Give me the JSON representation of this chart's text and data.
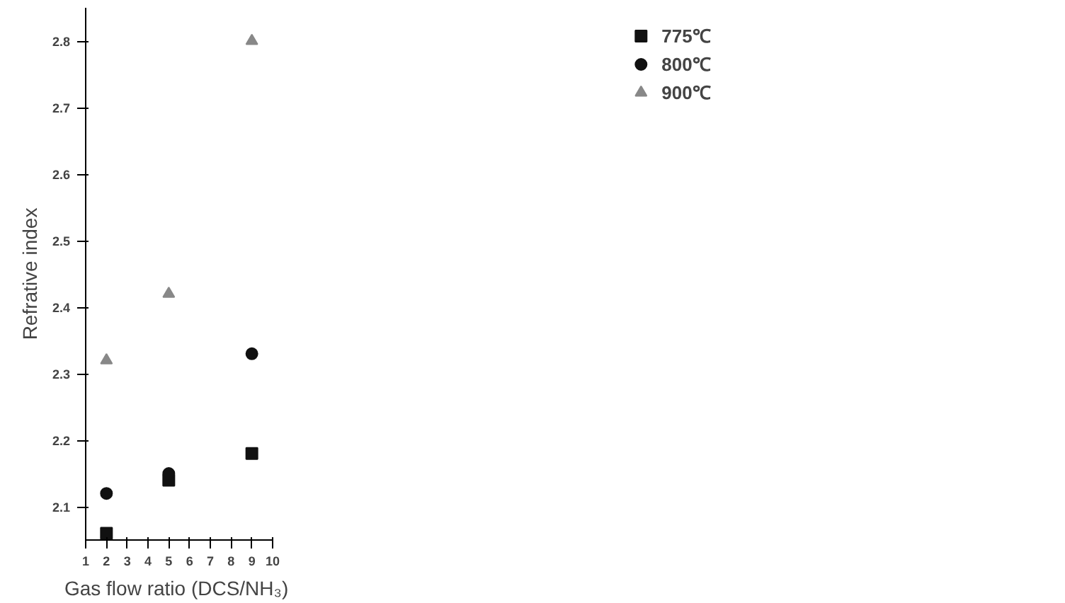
{
  "chart_data": {
    "type": "scatter",
    "xlabel": "Gas flow ratio  (DCS/NH₃)",
    "ylabel": "Refrative index",
    "x": [
      2,
      5,
      9
    ],
    "series": [
      {
        "name": "775℃",
        "color": "#111111",
        "marker": "square",
        "values": [
          2.06,
          2.14,
          2.18
        ]
      },
      {
        "name": "800℃",
        "color": "#111111",
        "marker": "circle",
        "values": [
          2.12,
          2.15,
          2.33
        ]
      },
      {
        "name": "900℃",
        "color": "#888888",
        "marker": "triangle",
        "values": [
          2.32,
          2.42,
          2.8
        ]
      }
    ],
    "xlim": [
      1,
      10
    ],
    "xticks": [
      1,
      2,
      3,
      4,
      5,
      6,
      7,
      8,
      9,
      10
    ],
    "ylim": [
      2.05,
      2.85
    ],
    "yticks": [
      2.1,
      2.2,
      2.3,
      2.4,
      2.5,
      2.6,
      2.7,
      2.8
    ],
    "grid": false,
    "legend": "right"
  }
}
